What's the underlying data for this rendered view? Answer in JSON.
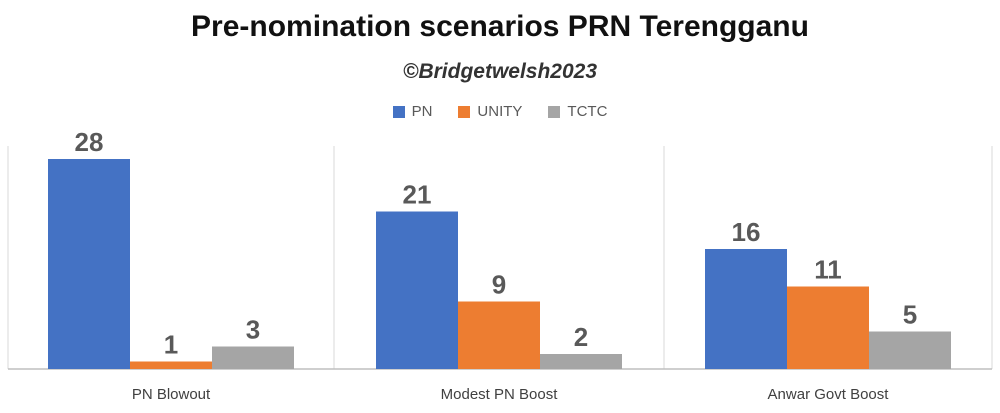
{
  "chart_data": {
    "type": "bar",
    "title": "Pre-nomination scenarios PRN Terengganu",
    "subtitle": "©Bridgetwelsh2023",
    "categories": [
      "PN Blowout",
      "Modest PN Boost",
      "Anwar Govt Boost"
    ],
    "series": [
      {
        "name": "PN",
        "color": "#4472C4",
        "values": [
          28,
          21,
          16
        ]
      },
      {
        "name": "UNITY",
        "color": "#ED7D31",
        "values": [
          1,
          9,
          11
        ]
      },
      {
        "name": "TCTC",
        "color": "#A5A5A5",
        "values": [
          3,
          2,
          5
        ]
      }
    ],
    "ylim": [
      0,
      28
    ],
    "legend_position": "top",
    "grid": false,
    "panel_separators": true
  }
}
